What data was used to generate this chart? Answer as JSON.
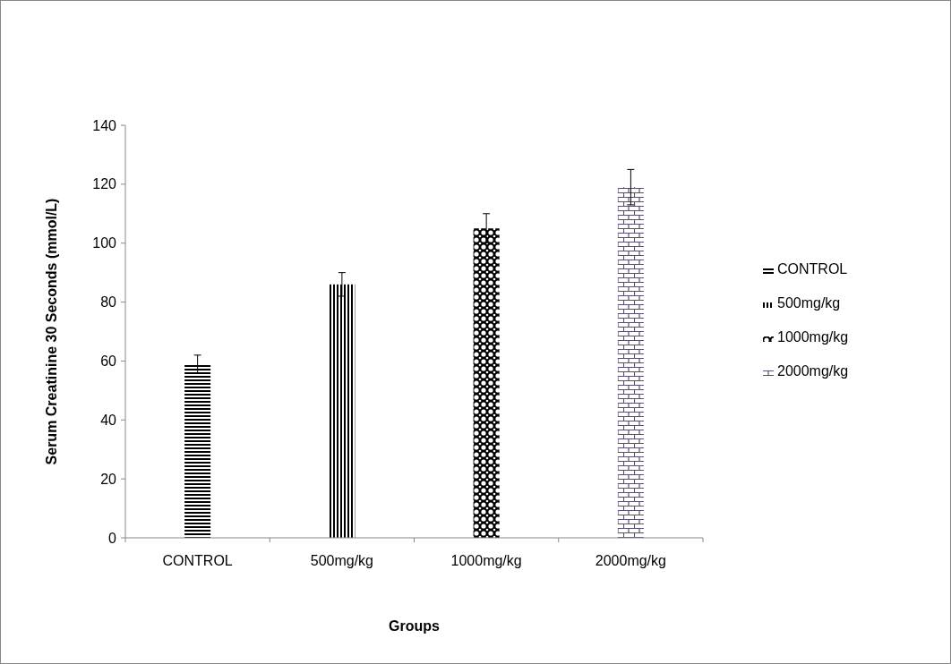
{
  "chart_data": {
    "type": "bar",
    "xlabel": "Groups",
    "ylabel": "Serum Creatinine 30 Seconds (mmol/L)",
    "categories": [
      "CONTROL",
      "500mg/kg",
      "1000mg/kg",
      "2000mg/kg"
    ],
    "series": [
      {
        "name": "CONTROL",
        "color": "#000000",
        "values": [
          59,
          null,
          null,
          null
        ],
        "errors": [
          3,
          null,
          null,
          null
        ]
      },
      {
        "name": "500mg/kg",
        "color": "#000000",
        "values": [
          null,
          86,
          null,
          null
        ],
        "errors": [
          null,
          4,
          null,
          null
        ]
      },
      {
        "name": "1000mg/kg",
        "color": "#000000",
        "values": [
          null,
          null,
          105,
          null
        ],
        "errors": [
          null,
          null,
          5,
          null
        ]
      },
      {
        "name": "2000mg/kg",
        "color": "#5b4f6b",
        "values": [
          null,
          null,
          null,
          119
        ],
        "errors": [
          null,
          null,
          null,
          6
        ]
      }
    ],
    "ylim": [
      0,
      140
    ],
    "yticks": [
      0,
      20,
      40,
      60,
      80,
      100,
      120,
      140
    ],
    "grid": false,
    "legend": "right"
  }
}
